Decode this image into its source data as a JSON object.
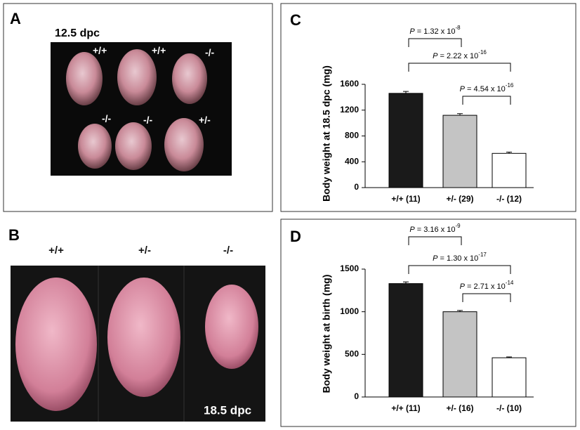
{
  "figure": {
    "panel_a": {
      "letter": "A",
      "stage": "12.5 dpc",
      "genotypes": [
        "+/+",
        "+/+",
        "-/-",
        "-/-",
        "-/-",
        "+/-"
      ]
    },
    "panel_b": {
      "letter": "B",
      "stage": "18.5 dpc",
      "genotypes": [
        "+/+",
        "+/-",
        "-/-"
      ]
    }
  },
  "chart_data": [
    {
      "type": "bar",
      "label": "C",
      "y_label": "Body weight at 18.5 dpc (mg)",
      "categories": [
        "+/+ (11)",
        "+/- (29)",
        "-/- (12)"
      ],
      "values": [
        1460,
        1120,
        530
      ],
      "errors": [
        30,
        25,
        20
      ],
      "colors": [
        "#1a1a1a",
        "#c4c4c4",
        "#ffffff"
      ],
      "ylim": [
        0,
        1600
      ],
      "yticks": [
        0,
        400,
        800,
        1200,
        1600
      ],
      "annotations": [
        {
          "label": "P",
          "text": " = 1.32 x 10",
          "exponent": "-8"
        },
        {
          "label": "P",
          "text": " = 2.22 x 10",
          "exponent": "-16"
        },
        {
          "label": "P",
          "text": " = 4.54 x 10",
          "exponent": "-16"
        }
      ]
    },
    {
      "type": "bar",
      "label": "D",
      "y_label": "Body weight at birth (mg)",
      "categories": [
        "+/+ (11)",
        "+/- (16)",
        "-/- (10)"
      ],
      "values": [
        1330,
        1000,
        460
      ],
      "errors": [
        20,
        15,
        10
      ],
      "colors": [
        "#1a1a1a",
        "#c4c4c4",
        "#ffffff"
      ],
      "ylim": [
        0,
        1500
      ],
      "yticks": [
        0,
        500,
        1000,
        1500
      ],
      "annotations": [
        {
          "label": "P",
          "text": " = 3.16 x 10",
          "exponent": "-9"
        },
        {
          "label": "P",
          "text": " = 1.30 x 10",
          "exponent": "-17"
        },
        {
          "label": "P",
          "text": " = 2.71 x 10",
          "exponent": "-14"
        }
      ]
    }
  ]
}
